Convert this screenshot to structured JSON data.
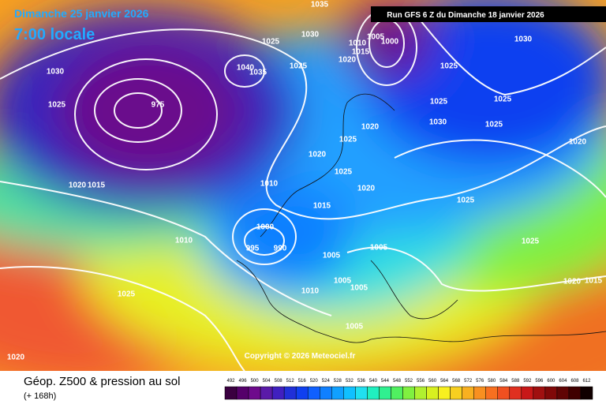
{
  "header": {
    "valid_date": "Dimanche 25 janvier 2026",
    "local_time": "7:00 locale",
    "run": "Run GFS 6 Z du Dimanche 18 janvier 2026"
  },
  "copyright": "Copyright © 2026 Meteociel.fr",
  "footer": {
    "title": "Géop. Z500 & pression au sol",
    "lead": "(+ 168h)"
  },
  "isobar_labels": [
    "1035",
    "1030",
    "1025",
    "1025",
    "1030",
    "1025",
    "975",
    "1020",
    "1015",
    "1010",
    "1005",
    "1000",
    "1030",
    "1025",
    "1025",
    "1025",
    "1030",
    "1025",
    "1020",
    "1020",
    "1025",
    "1020",
    "1025",
    "1020",
    "1025",
    "1010",
    "1015",
    "1020",
    "1015",
    "1010",
    "1000",
    "995",
    "990",
    "1005",
    "1005",
    "1025",
    "1020",
    "1015",
    "1005",
    "1005",
    "1010",
    "1025",
    "1005",
    "1020",
    "1040",
    "1035"
  ],
  "legend": {
    "values": [
      492,
      496,
      500,
      504,
      508,
      512,
      516,
      520,
      524,
      528,
      532,
      536,
      540,
      544,
      548,
      552,
      556,
      560,
      564,
      568,
      572,
      576,
      580,
      584,
      588,
      592,
      596,
      600,
      604,
      608,
      612
    ],
    "colors": [
      "#3a0040",
      "#55006a",
      "#6e0a8c",
      "#5a1aa8",
      "#4020c0",
      "#2030d8",
      "#1040f0",
      "#1060ff",
      "#1080ff",
      "#10a0ff",
      "#10c0ff",
      "#20e0f0",
      "#20f0c0",
      "#30f090",
      "#50f060",
      "#80f040",
      "#b0f030",
      "#d8f020",
      "#f8f020",
      "#f8d020",
      "#f8b020",
      "#f89020",
      "#f87020",
      "#f05020",
      "#e03020",
      "#c81818",
      "#a01010",
      "#800808",
      "#600404",
      "#400000",
      "#100000"
    ]
  }
}
